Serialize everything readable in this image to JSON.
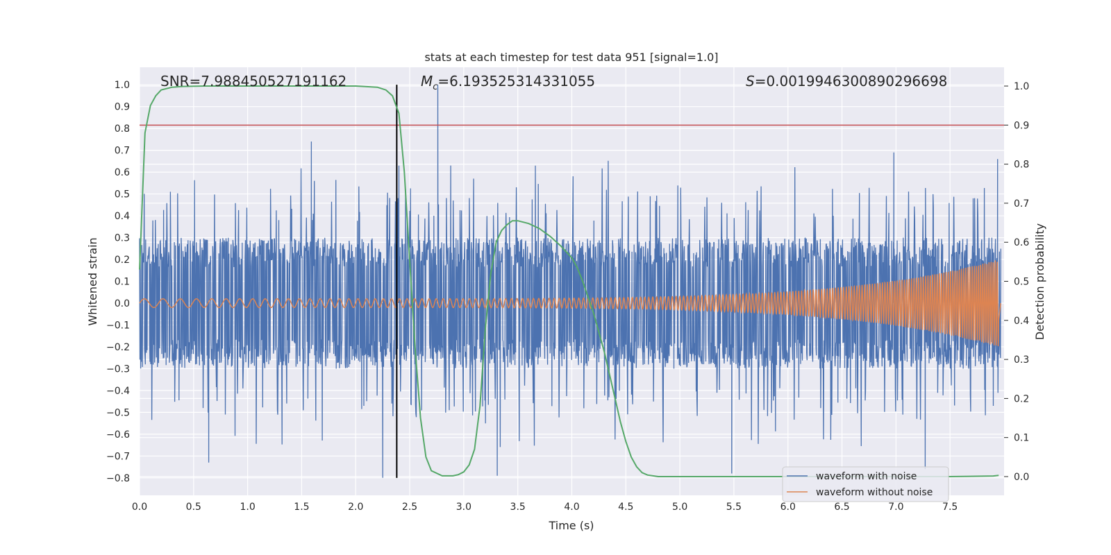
{
  "chart_data": {
    "type": "line",
    "title": "stats at each timestep for test data 951 [signal=1.0]",
    "xlabel": "Time (s)",
    "ylabel": "Whitened strain",
    "y2label": "Detection probability",
    "xlim": [
      0.0,
      8.0
    ],
    "ylim": [
      -0.88,
      1.08
    ],
    "y2lim": [
      -0.048,
      1.048
    ],
    "xticks": [
      "0.0",
      "0.5",
      "1.0",
      "1.5",
      "2.0",
      "2.5",
      "3.0",
      "3.5",
      "4.0",
      "4.5",
      "5.0",
      "5.5",
      "6.0",
      "6.5",
      "7.0",
      "7.5"
    ],
    "yticks": [
      "−0.8",
      "−0.7",
      "−0.6",
      "−0.5",
      "−0.4",
      "−0.3",
      "−0.2",
      "−0.1",
      "0.0",
      "0.1",
      "0.2",
      "0.3",
      "0.4",
      "0.5",
      "0.6",
      "0.7",
      "0.8",
      "0.9",
      "1.0"
    ],
    "y2ticks": [
      "0.0",
      "0.1",
      "0.2",
      "0.3",
      "0.4",
      "0.5",
      "0.6",
      "0.7",
      "0.8",
      "0.9",
      "1.0"
    ],
    "annotations": {
      "snr": "SNR=7.988450527191162",
      "mc": "=6.193525314331055",
      "s": "=0.0019946300890296698",
      "mc_symbol": "M",
      "mc_sub": "c",
      "s_symbol": "S"
    },
    "threshold": {
      "value": 0.9,
      "axis": "right",
      "color": "#c44e52"
    },
    "marker_line": {
      "x": 2.38,
      "y_from": -0.8,
      "y_to": 1.0,
      "color": "#000000"
    },
    "series": [
      {
        "name": "waveform with noise",
        "color": "#4c72b0",
        "axis": "left",
        "kind": "noise",
        "envelope": {
          "typical_abs": 0.3,
          "peak_high": 1.0,
          "peak_low": -0.8
        },
        "notable_spikes": [
          {
            "x": 2.76,
            "y": 1.0
          },
          {
            "x": 1.59,
            "y": 0.74
          },
          {
            "x": 6.98,
            "y": 0.69
          },
          {
            "x": 7.94,
            "y": 0.66
          },
          {
            "x": 2.25,
            "y": -0.8
          },
          {
            "x": 3.31,
            "y": -0.79
          },
          {
            "x": 0.64,
            "y": -0.73
          },
          {
            "x": 5.48,
            "y": -0.78
          },
          {
            "x": 7.27,
            "y": -0.76
          },
          {
            "x": 2.4,
            "y": 0.63
          }
        ]
      },
      {
        "name": "waveform without noise",
        "color": "#dd8452",
        "axis": "left",
        "kind": "chirp",
        "start_amplitude": 0.02,
        "end_amplitude": 0.2,
        "end_time": 7.95
      },
      {
        "name": "detection probability",
        "color": "#55a868",
        "axis": "right",
        "kind": "line",
        "x": [
          0.0,
          0.05,
          0.1,
          0.15,
          0.2,
          0.3,
          0.4,
          0.6,
          1.0,
          1.5,
          2.0,
          2.2,
          2.28,
          2.34,
          2.4,
          2.45,
          2.5,
          2.55,
          2.6,
          2.65,
          2.7,
          2.8,
          2.9,
          2.95,
          3.0,
          3.05,
          3.1,
          3.15,
          3.2,
          3.25,
          3.3,
          3.35,
          3.4,
          3.45,
          3.5,
          3.6,
          3.7,
          3.8,
          3.9,
          4.0,
          4.05,
          4.1,
          4.15,
          4.2,
          4.25,
          4.3,
          4.35,
          4.4,
          4.45,
          4.5,
          4.55,
          4.6,
          4.65,
          4.7,
          4.8,
          5.0,
          6.0,
          7.0,
          7.5,
          7.9,
          7.95
        ],
        "values": [
          0.53,
          0.88,
          0.95,
          0.975,
          0.99,
          0.997,
          0.999,
          1.0,
          1.0,
          1.0,
          1.0,
          0.997,
          0.99,
          0.975,
          0.93,
          0.78,
          0.55,
          0.33,
          0.15,
          0.05,
          0.015,
          0.002,
          0.002,
          0.005,
          0.012,
          0.03,
          0.07,
          0.18,
          0.38,
          0.52,
          0.6,
          0.63,
          0.645,
          0.655,
          0.655,
          0.648,
          0.635,
          0.615,
          0.59,
          0.56,
          0.535,
          0.5,
          0.46,
          0.42,
          0.37,
          0.32,
          0.26,
          0.2,
          0.14,
          0.09,
          0.05,
          0.025,
          0.01,
          0.004,
          0.0,
          0.0,
          0.0,
          0.0,
          0.0,
          0.0015,
          0.003
        ]
      }
    ],
    "legend": {
      "placement": "lower-right",
      "entries": [
        {
          "label": "waveform with noise",
          "color": "#4c72b0"
        },
        {
          "label": "waveform without noise",
          "color": "#dd8452"
        }
      ]
    },
    "grid": true,
    "colors": {
      "background": "#eaeaf2",
      "grid": "#ffffff",
      "text": "#262626"
    }
  }
}
